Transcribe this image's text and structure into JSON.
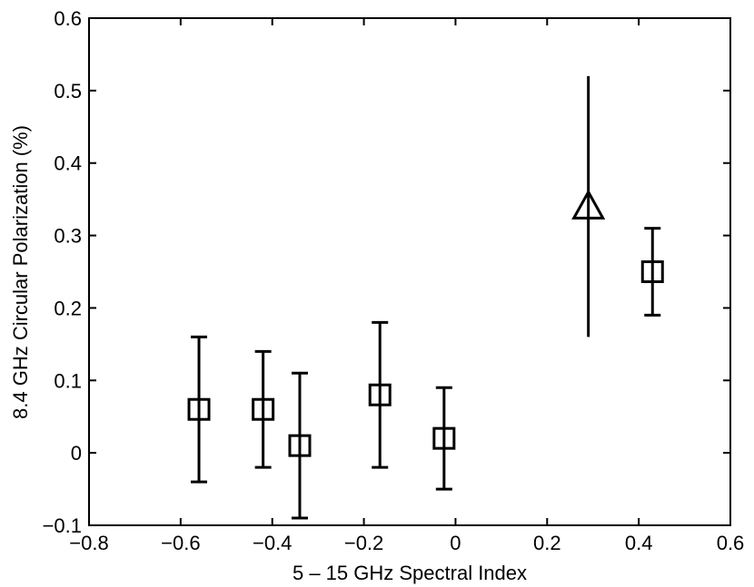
{
  "chart_data": {
    "type": "scatter",
    "title": "",
    "xlabel": "5 – 15 GHz Spectral Index",
    "ylabel": "8.4 GHz Circular Polarization (%)",
    "xlim": [
      -0.8,
      0.6
    ],
    "ylim": [
      -0.1,
      0.6
    ],
    "x_ticks": [
      -0.8,
      -0.6,
      -0.4,
      -0.2,
      0,
      0.2,
      0.4,
      0.6
    ],
    "x_tick_labels": [
      "−0.8",
      "−0.6",
      "−0.4",
      "−0.2",
      "0",
      "0.2",
      "0.4",
      "0.6"
    ],
    "y_ticks": [
      -0.1,
      0,
      0.1,
      0.2,
      0.3,
      0.4,
      0.5,
      0.6
    ],
    "y_tick_labels": [
      "−0.1",
      "0",
      "0.1",
      "0.2",
      "0.3",
      "0.4",
      "0.5",
      "0.6"
    ],
    "grid": false,
    "legend": "none",
    "color": "#000000",
    "points": [
      {
        "x": -0.56,
        "y": 0.06,
        "y_low": -0.04,
        "y_high": 0.16,
        "marker": "square"
      },
      {
        "x": -0.42,
        "y": 0.06,
        "y_low": -0.02,
        "y_high": 0.14,
        "marker": "square"
      },
      {
        "x": -0.34,
        "y": 0.01,
        "y_low": -0.09,
        "y_high": 0.11,
        "marker": "square"
      },
      {
        "x": -0.165,
        "y": 0.08,
        "y_low": -0.02,
        "y_high": 0.18,
        "marker": "square"
      },
      {
        "x": -0.025,
        "y": 0.02,
        "y_low": -0.05,
        "y_high": 0.09,
        "marker": "square"
      },
      {
        "x": 0.29,
        "y": 0.34,
        "y_low": 0.16,
        "y_high": 0.52,
        "marker": "triangle"
      },
      {
        "x": 0.43,
        "y": 0.25,
        "y_low": 0.19,
        "y_high": 0.31,
        "marker": "square"
      }
    ]
  }
}
